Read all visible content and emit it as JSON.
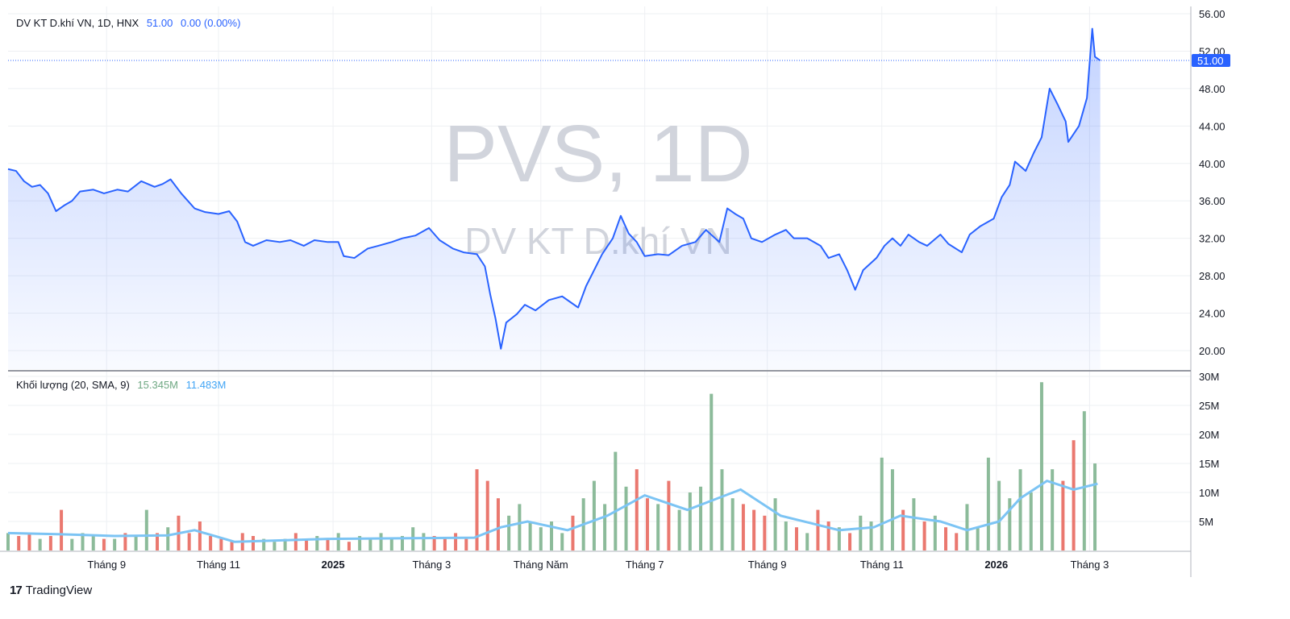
{
  "header": {
    "name": "DV KT D.khí VN, 1D, HNX",
    "last": "51.00",
    "change": "0.00 (0.00%)"
  },
  "volume_legend": {
    "label": "Khối lượng (20, SMA, 9)",
    "volume": "15.345M",
    "sma": "11.483M"
  },
  "watermark": {
    "symbol": "PVS, 1D",
    "name": "DV KT D.khí VN"
  },
  "last_price_label": "51.00",
  "branding": "TradingView",
  "colors": {
    "line": "#2962ff",
    "up": "#7fb48f",
    "down": "#e8695f",
    "sma": "#7cc4f4",
    "grid": "#eef0f3"
  },
  "chart_data": {
    "type": "line",
    "title": "DV KT D.khí VN, 1D, HNX",
    "x_unit": "trading day index",
    "xlim": [
      0,
      444
    ],
    "ylim": [
      19,
      57
    ],
    "y_ticks": [
      "56.00",
      "52.00",
      "48.00",
      "44.00",
      "40.00",
      "36.00",
      "32.00",
      "28.00",
      "24.00",
      "20.00"
    ],
    "x_ticks": [
      {
        "t": 37,
        "label": "Tháng 9",
        "bold": false
      },
      {
        "t": 79,
        "label": "Tháng 11",
        "bold": false
      },
      {
        "t": 122,
        "label": "2025",
        "bold": true
      },
      {
        "t": 159,
        "label": "Tháng 3",
        "bold": false
      },
      {
        "t": 200,
        "label": "Tháng Năm",
        "bold": false
      },
      {
        "t": 239,
        "label": "Tháng 7",
        "bold": false
      },
      {
        "t": 285,
        "label": "Tháng 9",
        "bold": false
      },
      {
        "t": 328,
        "label": "Tháng 11",
        "bold": false
      },
      {
        "t": 371,
        "label": "2026",
        "bold": true
      },
      {
        "t": 406,
        "label": "Tháng 3",
        "bold": false
      }
    ],
    "price": [
      [
        0,
        39.4
      ],
      [
        3,
        39.2
      ],
      [
        6,
        38.1
      ],
      [
        9,
        37.5
      ],
      [
        12,
        37.7
      ],
      [
        15,
        36.8
      ],
      [
        18,
        34.9
      ],
      [
        21,
        35.5
      ],
      [
        24,
        36.0
      ],
      [
        27,
        37.0
      ],
      [
        32,
        37.2
      ],
      [
        36,
        36.8
      ],
      [
        41,
        37.2
      ],
      [
        45,
        37.0
      ],
      [
        50,
        38.1
      ],
      [
        55,
        37.5
      ],
      [
        58,
        37.8
      ],
      [
        61,
        38.3
      ],
      [
        65,
        36.8
      ],
      [
        70,
        35.2
      ],
      [
        74,
        34.8
      ],
      [
        79,
        34.6
      ],
      [
        83,
        34.9
      ],
      [
        86,
        33.8
      ],
      [
        89,
        31.6
      ],
      [
        92,
        31.2
      ],
      [
        97,
        31.8
      ],
      [
        102,
        31.6
      ],
      [
        106,
        31.8
      ],
      [
        111,
        31.2
      ],
      [
        115,
        31.8
      ],
      [
        120,
        31.6
      ],
      [
        124,
        31.6
      ],
      [
        126,
        30.1
      ],
      [
        130,
        29.9
      ],
      [
        135,
        30.9
      ],
      [
        139,
        31.2
      ],
      [
        144,
        31.6
      ],
      [
        148,
        32.0
      ],
      [
        153,
        32.3
      ],
      [
        158,
        33.1
      ],
      [
        162,
        31.8
      ],
      [
        167,
        30.9
      ],
      [
        171,
        30.5
      ],
      [
        176,
        30.3
      ],
      [
        179,
        29.0
      ],
      [
        181,
        26.0
      ],
      [
        183,
        23.4
      ],
      [
        185,
        20.2
      ],
      [
        187,
        23.0
      ],
      [
        191,
        23.9
      ],
      [
        194,
        24.9
      ],
      [
        198,
        24.3
      ],
      [
        203,
        25.4
      ],
      [
        208,
        25.8
      ],
      [
        211,
        25.2
      ],
      [
        214,
        24.6
      ],
      [
        217,
        26.9
      ],
      [
        220,
        28.6
      ],
      [
        223,
        30.3
      ],
      [
        227,
        32.0
      ],
      [
        230,
        34.4
      ],
      [
        233,
        32.5
      ],
      [
        236,
        31.6
      ],
      [
        239,
        30.1
      ],
      [
        244,
        30.3
      ],
      [
        248,
        30.2
      ],
      [
        253,
        31.2
      ],
      [
        258,
        31.6
      ],
      [
        262,
        32.9
      ],
      [
        267,
        31.6
      ],
      [
        270,
        35.2
      ],
      [
        273,
        34.6
      ],
      [
        276,
        34.1
      ],
      [
        279,
        32.0
      ],
      [
        283,
        31.6
      ],
      [
        288,
        32.4
      ],
      [
        292,
        32.9
      ],
      [
        295,
        32.0
      ],
      [
        300,
        32.0
      ],
      [
        305,
        31.2
      ],
      [
        308,
        29.9
      ],
      [
        312,
        30.3
      ],
      [
        315,
        28.6
      ],
      [
        318,
        26.5
      ],
      [
        321,
        28.6
      ],
      [
        326,
        29.9
      ],
      [
        329,
        31.2
      ],
      [
        332,
        32.0
      ],
      [
        335,
        31.2
      ],
      [
        338,
        32.4
      ],
      [
        342,
        31.6
      ],
      [
        345,
        31.2
      ],
      [
        350,
        32.4
      ],
      [
        353,
        31.4
      ],
      [
        358,
        30.5
      ],
      [
        361,
        32.4
      ],
      [
        365,
        33.3
      ],
      [
        370,
        34.1
      ],
      [
        373,
        36.4
      ],
      [
        376,
        37.7
      ],
      [
        378,
        40.2
      ],
      [
        382,
        39.2
      ],
      [
        385,
        41.1
      ],
      [
        388,
        42.8
      ],
      [
        391,
        48.0
      ],
      [
        394,
        46.3
      ],
      [
        397,
        44.5
      ],
      [
        398,
        42.3
      ],
      [
        402,
        44.0
      ],
      [
        405,
        47.0
      ],
      [
        407,
        54.4
      ],
      [
        408,
        51.4
      ],
      [
        410,
        51.0
      ]
    ],
    "last_price": 51.0,
    "volume": {
      "t_start": 0,
      "t_step": 4,
      "unit": "M",
      "ylim": [
        0,
        31
      ],
      "y_ticks": [
        {
          "v": 30,
          "label": "30M"
        },
        {
          "v": 25,
          "label": "25M"
        },
        {
          "v": 20,
          "label": "20M"
        },
        {
          "v": 15,
          "label": "15M"
        },
        {
          "v": 10,
          "label": "10M"
        },
        {
          "v": 5,
          "label": "5M"
        }
      ],
      "values": [
        3,
        2.5,
        3,
        2,
        2.5,
        7,
        2,
        3,
        2.5,
        2,
        2,
        3,
        2.5,
        7,
        3,
        4,
        6,
        3,
        5,
        2.5,
        2,
        1.5,
        3,
        2.5,
        2,
        1.5,
        2,
        3,
        2,
        2.5,
        2,
        3,
        1.5,
        2.5,
        2,
        3,
        2,
        2.5,
        4,
        3,
        2.5,
        2,
        3,
        2,
        14,
        12,
        9,
        6,
        8,
        5,
        4,
        5,
        3,
        6,
        9,
        12,
        8,
        17,
        11,
        14,
        9,
        8,
        12,
        7,
        10,
        11,
        27,
        14,
        9,
        8,
        7,
        6,
        9,
        5,
        4,
        3,
        7,
        5,
        4,
        3,
        6,
        5,
        16,
        14,
        7,
        9,
        5,
        6,
        4,
        3,
        8,
        4,
        16,
        12,
        9,
        14,
        10,
        29,
        14,
        12,
        19,
        24,
        15
      ],
      "sma": [
        [
          0,
          3
        ],
        [
          20,
          2.8
        ],
        [
          40,
          2.5
        ],
        [
          60,
          2.6
        ],
        [
          70,
          3.5
        ],
        [
          85,
          1.5
        ],
        [
          120,
          2
        ],
        [
          175,
          2.2
        ],
        [
          185,
          4
        ],
        [
          195,
          5
        ],
        [
          210,
          3.5
        ],
        [
          225,
          6
        ],
        [
          239,
          9.5
        ],
        [
          255,
          7
        ],
        [
          275,
          10.5
        ],
        [
          290,
          6
        ],
        [
          312,
          3.5
        ],
        [
          325,
          4
        ],
        [
          335,
          6
        ],
        [
          350,
          5
        ],
        [
          360,
          3.5
        ],
        [
          372,
          5
        ],
        [
          380,
          9
        ],
        [
          390,
          12
        ],
        [
          400,
          10.5
        ],
        [
          409,
          11.5
        ]
      ]
    }
  }
}
